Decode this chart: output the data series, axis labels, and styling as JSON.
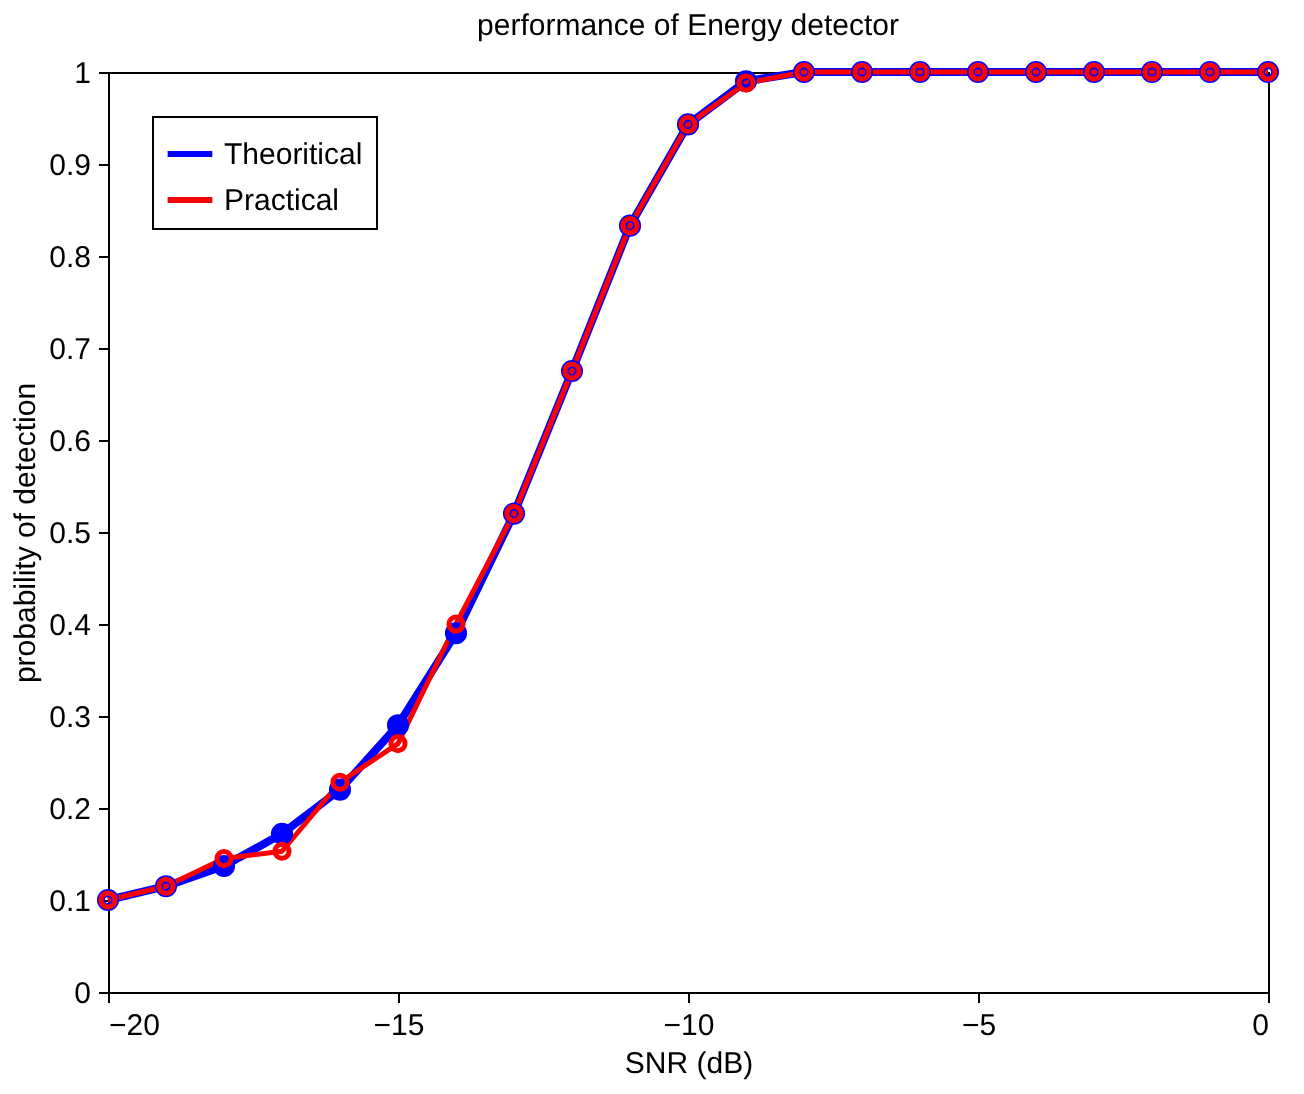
{
  "chart_data": {
    "type": "line",
    "title": "performance of Energy detector",
    "xlabel": "SNR (dB)",
    "ylabel": "probability of detection",
    "x": [
      -20,
      -19,
      -18,
      -17,
      -16,
      -15,
      -14,
      -13,
      -12,
      -11,
      -10,
      -9,
      -8,
      -7,
      -6,
      -5,
      -4,
      -3,
      -2,
      -1,
      0
    ],
    "series": [
      {
        "name": "Theoritical",
        "color": "#0000ff",
        "values": [
          0.1,
          0.115,
          0.137,
          0.172,
          0.22,
          0.29,
          0.39,
          0.52,
          0.675,
          0.833,
          0.943,
          0.99,
          1.0,
          1.0,
          1.0,
          1.0,
          1.0,
          1.0,
          1.0,
          1.0,
          1.0
        ]
      },
      {
        "name": "Practical",
        "color": "#ff0000",
        "values": [
          0.1,
          0.115,
          0.145,
          0.153,
          0.228,
          0.27,
          0.4,
          0.52,
          0.675,
          0.833,
          0.943,
          0.988,
          1.0,
          1.0,
          1.0,
          1.0,
          1.0,
          1.0,
          1.0,
          1.0,
          1.0
        ]
      }
    ],
    "xlim": [
      -20,
      0
    ],
    "xticks": [
      -20,
      -15,
      -10,
      -5,
      0
    ],
    "ylim": [
      0,
      1
    ],
    "yticks": [
      0,
      0.1,
      0.2,
      0.3,
      0.4,
      0.5,
      0.6,
      0.7,
      0.8,
      0.9,
      1
    ],
    "grid": false,
    "legend": "top left",
    "marker": "circle",
    "line_style": "solid"
  }
}
